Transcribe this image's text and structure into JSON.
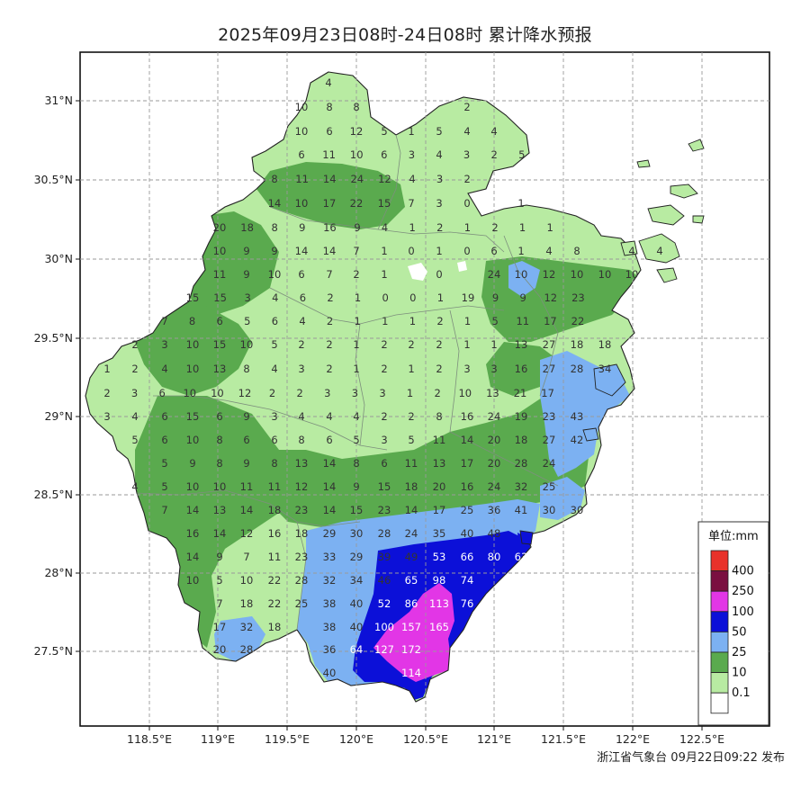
{
  "title": "2025年09月23日08时-24日08时 累计降水预报",
  "publisher": "浙江省气象台 09月22日09:22 发布",
  "lon_ticks": [
    "118.5°E",
    "119°E",
    "119.5°E",
    "120°E",
    "120.5°E",
    "121°E",
    "121.5°E",
    "122°E",
    "122.5°E"
  ],
  "lat_ticks": [
    "31°N",
    "30.5°N",
    "30°N",
    "29.5°N",
    "29°N",
    "28.5°N",
    "28°N",
    "27.5°N"
  ],
  "legend": {
    "title": "单位:mm",
    "items": [
      {
        "label": "400",
        "color": "#e8312a"
      },
      {
        "label": "250",
        "color": "#7a1040"
      },
      {
        "label": "100",
        "color": "#e236e6"
      },
      {
        "label": "50",
        "color": "#0c10d8"
      },
      {
        "label": "25",
        "color": "#7cb1f2"
      },
      {
        "label": "10",
        "color": "#5aaa4e"
      },
      {
        "label": "0.1",
        "color": "#b8eba2"
      }
    ],
    "bottom_color": "#ffffff"
  },
  "precip_rows": [
    [
      "4"
    ],
    [
      "10",
      "8",
      "8",
      "2"
    ],
    [
      "10",
      "6",
      "12",
      "5",
      "1",
      "5",
      "4",
      "4"
    ],
    [
      "6",
      "11",
      "10",
      "6",
      "3",
      "4",
      "3",
      "2",
      "5"
    ],
    [
      "8",
      "11",
      "14",
      "24",
      "12",
      "4",
      "3",
      "2"
    ],
    [
      "14",
      "10",
      "17",
      "22",
      "15",
      "7",
      "3",
      "0",
      "1"
    ],
    [
      "20",
      "18",
      "8",
      "9",
      "16",
      "9",
      "4",
      "1",
      "2",
      "1",
      "2",
      "1",
      "1"
    ],
    [
      "10",
      "9",
      "9",
      "14",
      "14",
      "7",
      "1",
      "0",
      "1",
      "0",
      "6",
      "1",
      "4",
      "8",
      "4",
      "4"
    ],
    [
      "11",
      "9",
      "10",
      "6",
      "7",
      "2",
      "1",
      "0",
      "24",
      "10",
      "12",
      "10",
      "10",
      "10"
    ],
    [
      "15",
      "15",
      "3",
      "4",
      "6",
      "2",
      "1",
      "0",
      "0",
      "1",
      "19",
      "9",
      "9",
      "12",
      "23"
    ],
    [
      "7",
      "8",
      "6",
      "5",
      "6",
      "4",
      "2",
      "1",
      "1",
      "1",
      "2",
      "1",
      "5",
      "11",
      "17",
      "22"
    ],
    [
      "2",
      "3",
      "10",
      "15",
      "10",
      "5",
      "2",
      "2",
      "1",
      "2",
      "2",
      "2",
      "1",
      "1",
      "13",
      "27",
      "18",
      "18"
    ],
    [
      "1",
      "2",
      "4",
      "10",
      "13",
      "8",
      "4",
      "3",
      "2",
      "1",
      "2",
      "1",
      "2",
      "3",
      "3",
      "16",
      "27",
      "28",
      "34"
    ],
    [
      "2",
      "3",
      "6",
      "10",
      "10",
      "12",
      "2",
      "2",
      "3",
      "3",
      "3",
      "1",
      "2",
      "10",
      "13",
      "21",
      "17"
    ],
    [
      "3",
      "4",
      "6",
      "15",
      "6",
      "9",
      "3",
      "4",
      "4",
      "4",
      "2",
      "2",
      "8",
      "16",
      "24",
      "19",
      "23",
      "43"
    ],
    [
      "5",
      "6",
      "10",
      "8",
      "6",
      "6",
      "8",
      "6",
      "5",
      "3",
      "5",
      "11",
      "14",
      "20",
      "18",
      "27",
      "42"
    ],
    [
      "5",
      "9",
      "8",
      "9",
      "8",
      "13",
      "14",
      "8",
      "6",
      "11",
      "13",
      "17",
      "20",
      "28",
      "24"
    ],
    [
      "4",
      "5",
      "10",
      "10",
      "11",
      "11",
      "12",
      "14",
      "9",
      "15",
      "18",
      "20",
      "16",
      "24",
      "32",
      "25"
    ],
    [
      "7",
      "14",
      "13",
      "14",
      "18",
      "23",
      "14",
      "15",
      "23",
      "14",
      "17",
      "25",
      "36",
      "41",
      "30",
      "30"
    ],
    [
      "16",
      "14",
      "12",
      "16",
      "18",
      "29",
      "30",
      "28",
      "24",
      "35",
      "40",
      "48"
    ],
    [
      "14",
      "9",
      "7",
      "11",
      "23",
      "33",
      "29",
      "39",
      "49",
      "53",
      "66",
      "80",
      "63"
    ],
    [
      "10",
      "5",
      "10",
      "22",
      "28",
      "32",
      "34",
      "46",
      "65",
      "98",
      "74"
    ],
    [
      "7",
      "18",
      "22",
      "25",
      "38",
      "40",
      "52",
      "86",
      "113",
      "76"
    ],
    [
      "17",
      "32",
      "18",
      "38",
      "40",
      "100",
      "157",
      "165"
    ],
    [
      "20",
      "28",
      "36",
      "64",
      "127",
      "172"
    ],
    [
      "40",
      "114"
    ]
  ]
}
